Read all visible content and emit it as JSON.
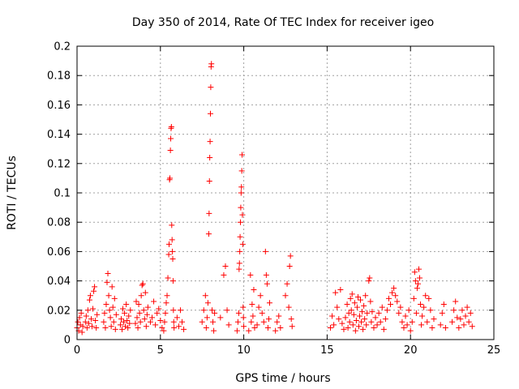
{
  "chart_data": {
    "type": "scatter",
    "title": "Day 350 of 2014, Rate Of TEC Index for receiver igeo",
    "xlabel": "GPS time / hours",
    "ylabel": "ROTI / TECUs",
    "xlim": [
      0,
      25
    ],
    "ylim": [
      0,
      0.2
    ],
    "xticks": [
      0,
      5,
      10,
      15,
      20,
      25
    ],
    "xtick_labels": [
      "0",
      "5",
      "10",
      "15",
      "20",
      "25"
    ],
    "yticks": [
      0,
      0.02,
      0.04,
      0.06,
      0.08,
      0.1,
      0.12,
      0.14,
      0.16,
      0.18,
      0.2
    ],
    "ytick_labels": [
      "0",
      "0.02",
      "0.04",
      "0.06",
      "0.08",
      "0.1",
      "0.12",
      "0.14",
      "0.16",
      "0.18",
      "0.2"
    ],
    "grid": true,
    "marker": "+",
    "marker_color": "#ff0000",
    "series": [
      {
        "name": "ROTI",
        "points": [
          [
            0.0,
            0.008
          ],
          [
            0.05,
            0.012
          ],
          [
            0.1,
            0.006
          ],
          [
            0.15,
            0.015
          ],
          [
            0.2,
            0.01
          ],
          [
            0.25,
            0.018
          ],
          [
            0.3,
            0.005
          ],
          [
            0.35,
            0.009
          ],
          [
            0.5,
            0.012
          ],
          [
            0.55,
            0.016
          ],
          [
            0.6,
            0.008
          ],
          [
            0.65,
            0.02
          ],
          [
            0.7,
            0.011
          ],
          [
            0.75,
            0.027
          ],
          [
            0.8,
            0.03
          ],
          [
            0.85,
            0.014
          ],
          [
            0.9,
            0.009
          ],
          [
            0.95,
            0.021
          ],
          [
            1.0,
            0.033
          ],
          [
            1.05,
            0.036
          ],
          [
            1.1,
            0.013
          ],
          [
            1.15,
            0.008
          ],
          [
            1.2,
            0.017
          ],
          [
            1.6,
            0.012
          ],
          [
            1.65,
            0.018
          ],
          [
            1.7,
            0.008
          ],
          [
            1.75,
            0.024
          ],
          [
            1.8,
            0.039
          ],
          [
            1.85,
            0.045
          ],
          [
            1.9,
            0.03
          ],
          [
            1.95,
            0.02
          ],
          [
            2.0,
            0.015
          ],
          [
            2.05,
            0.009
          ],
          [
            2.1,
            0.036
          ],
          [
            2.15,
            0.022
          ],
          [
            2.2,
            0.012
          ],
          [
            2.25,
            0.028
          ],
          [
            2.3,
            0.007
          ],
          [
            2.35,
            0.017
          ],
          [
            2.6,
            0.01
          ],
          [
            2.65,
            0.014
          ],
          [
            2.7,
            0.007
          ],
          [
            2.75,
            0.021
          ],
          [
            2.8,
            0.012
          ],
          [
            2.85,
            0.018
          ],
          [
            2.9,
            0.009
          ],
          [
            2.95,
            0.024
          ],
          [
            3.0,
            0.013
          ],
          [
            3.05,
            0.008
          ],
          [
            3.1,
            0.016
          ],
          [
            3.15,
            0.011
          ],
          [
            3.2,
            0.02
          ],
          [
            3.5,
            0.011
          ],
          [
            3.55,
            0.026
          ],
          [
            3.6,
            0.015
          ],
          [
            3.65,
            0.008
          ],
          [
            3.7,
            0.024
          ],
          [
            3.75,
            0.018
          ],
          [
            3.8,
            0.012
          ],
          [
            3.85,
            0.03
          ],
          [
            3.9,
            0.037
          ],
          [
            3.95,
            0.038
          ],
          [
            4.0,
            0.02
          ],
          [
            4.05,
            0.014
          ],
          [
            4.1,
            0.032
          ],
          [
            4.15,
            0.009
          ],
          [
            4.2,
            0.017
          ],
          [
            4.25,
            0.022
          ],
          [
            4.4,
            0.012
          ],
          [
            4.5,
            0.015
          ],
          [
            4.6,
            0.026
          ],
          [
            4.7,
            0.01
          ],
          [
            4.8,
            0.018
          ],
          [
            4.9,
            0.021
          ],
          [
            5.0,
            0.013
          ],
          [
            5.1,
            0.008
          ],
          [
            5.2,
            0.006
          ],
          [
            5.25,
            0.012
          ],
          [
            5.3,
            0.018
          ],
          [
            5.35,
            0.025
          ],
          [
            5.4,
            0.03
          ],
          [
            5.45,
            0.042
          ],
          [
            5.5,
            0.058
          ],
          [
            5.52,
            0.065
          ],
          [
            5.55,
            0.109
          ],
          [
            5.57,
            0.11
          ],
          [
            5.6,
            0.129
          ],
          [
            5.62,
            0.137
          ],
          [
            5.64,
            0.144
          ],
          [
            5.66,
            0.145
          ],
          [
            5.68,
            0.078
          ],
          [
            5.7,
            0.068
          ],
          [
            5.72,
            0.06
          ],
          [
            5.74,
            0.055
          ],
          [
            5.76,
            0.04
          ],
          [
            5.78,
            0.02
          ],
          [
            5.8,
            0.012
          ],
          [
            5.82,
            0.008
          ],
          [
            6.0,
            0.015
          ],
          [
            6.1,
            0.009
          ],
          [
            6.2,
            0.02
          ],
          [
            6.3,
            0.012
          ],
          [
            6.4,
            0.007
          ],
          [
            7.5,
            0.012
          ],
          [
            7.6,
            0.02
          ],
          [
            7.7,
            0.03
          ],
          [
            7.75,
            0.008
          ],
          [
            7.8,
            0.015
          ],
          [
            7.85,
            0.025
          ],
          [
            7.9,
            0.072
          ],
          [
            7.92,
            0.086
          ],
          [
            7.94,
            0.108
          ],
          [
            7.96,
            0.124
          ],
          [
            7.98,
            0.135
          ],
          [
            8.0,
            0.154
          ],
          [
            8.02,
            0.172
          ],
          [
            8.04,
            0.186
          ],
          [
            8.06,
            0.188
          ],
          [
            8.1,
            0.02
          ],
          [
            8.15,
            0.012
          ],
          [
            8.2,
            0.006
          ],
          [
            8.25,
            0.018
          ],
          [
            8.6,
            0.015
          ],
          [
            8.8,
            0.044
          ],
          [
            8.9,
            0.05
          ],
          [
            9.0,
            0.02
          ],
          [
            9.1,
            0.01
          ],
          [
            9.6,
            0.006
          ],
          [
            9.65,
            0.012
          ],
          [
            9.7,
            0.018
          ],
          [
            9.72,
            0.048
          ],
          [
            9.74,
            0.052
          ],
          [
            9.76,
            0.06
          ],
          [
            9.78,
            0.07
          ],
          [
            9.8,
            0.08
          ],
          [
            9.82,
            0.09
          ],
          [
            9.84,
            0.1
          ],
          [
            9.86,
            0.104
          ],
          [
            9.88,
            0.115
          ],
          [
            9.9,
            0.126
          ],
          [
            9.92,
            0.085
          ],
          [
            9.94,
            0.065
          ],
          [
            9.96,
            0.022
          ],
          [
            9.98,
            0.015
          ],
          [
            10.0,
            0.009
          ],
          [
            10.3,
            0.006
          ],
          [
            10.4,
            0.044
          ],
          [
            10.45,
            0.012
          ],
          [
            10.5,
            0.024
          ],
          [
            10.55,
            0.016
          ],
          [
            10.6,
            0.034
          ],
          [
            10.65,
            0.008
          ],
          [
            10.8,
            0.01
          ],
          [
            10.9,
            0.022
          ],
          [
            11.0,
            0.03
          ],
          [
            11.1,
            0.018
          ],
          [
            11.2,
            0.012
          ],
          [
            11.3,
            0.06
          ],
          [
            11.35,
            0.044
          ],
          [
            11.4,
            0.038
          ],
          [
            11.45,
            0.008
          ],
          [
            11.5,
            0.014
          ],
          [
            11.55,
            0.025
          ],
          [
            11.9,
            0.006
          ],
          [
            12.0,
            0.012
          ],
          [
            12.1,
            0.016
          ],
          [
            12.2,
            0.008
          ],
          [
            12.5,
            0.03
          ],
          [
            12.6,
            0.038
          ],
          [
            12.7,
            0.022
          ],
          [
            12.75,
            0.05
          ],
          [
            12.8,
            0.057
          ],
          [
            12.85,
            0.014
          ],
          [
            12.9,
            0.009
          ],
          [
            15.2,
            0.008
          ],
          [
            15.3,
            0.016
          ],
          [
            15.4,
            0.01
          ],
          [
            15.5,
            0.032
          ],
          [
            15.6,
            0.022
          ],
          [
            15.7,
            0.014
          ],
          [
            15.8,
            0.034
          ],
          [
            15.9,
            0.011
          ],
          [
            16.0,
            0.007
          ],
          [
            16.1,
            0.015
          ],
          [
            16.2,
            0.024
          ],
          [
            16.25,
            0.008
          ],
          [
            16.3,
            0.018
          ],
          [
            16.35,
            0.012
          ],
          [
            16.4,
            0.028
          ],
          [
            16.45,
            0.02
          ],
          [
            16.5,
            0.031
          ],
          [
            16.55,
            0.01
          ],
          [
            16.6,
            0.017
          ],
          [
            16.65,
            0.025
          ],
          [
            16.7,
            0.006
          ],
          [
            16.75,
            0.013
          ],
          [
            16.8,
            0.022
          ],
          [
            16.85,
            0.029
          ],
          [
            16.9,
            0.009
          ],
          [
            16.95,
            0.016
          ],
          [
            17.0,
            0.027
          ],
          [
            17.05,
            0.012
          ],
          [
            17.1,
            0.019
          ],
          [
            17.15,
            0.007
          ],
          [
            17.2,
            0.023
          ],
          [
            17.25,
            0.014
          ],
          [
            17.3,
            0.03
          ],
          [
            17.35,
            0.01
          ],
          [
            17.4,
            0.018
          ],
          [
            17.5,
            0.04
          ],
          [
            17.55,
            0.042
          ],
          [
            17.6,
            0.026
          ],
          [
            17.65,
            0.012
          ],
          [
            17.7,
            0.019
          ],
          [
            17.8,
            0.008
          ],
          [
            17.9,
            0.015
          ],
          [
            18.0,
            0.01
          ],
          [
            18.1,
            0.018
          ],
          [
            18.2,
            0.012
          ],
          [
            18.3,
            0.022
          ],
          [
            18.4,
            0.007
          ],
          [
            18.5,
            0.014
          ],
          [
            18.6,
            0.02
          ],
          [
            18.7,
            0.028
          ],
          [
            18.8,
            0.024
          ],
          [
            18.9,
            0.032
          ],
          [
            19.0,
            0.035
          ],
          [
            19.1,
            0.03
          ],
          [
            19.2,
            0.026
          ],
          [
            19.3,
            0.018
          ],
          [
            19.4,
            0.022
          ],
          [
            19.5,
            0.012
          ],
          [
            19.6,
            0.008
          ],
          [
            19.7,
            0.016
          ],
          [
            19.8,
            0.01
          ],
          [
            19.9,
            0.02
          ],
          [
            20.0,
            0.006
          ],
          [
            20.1,
            0.012
          ],
          [
            20.2,
            0.028
          ],
          [
            20.25,
            0.046
          ],
          [
            20.3,
            0.04
          ],
          [
            20.35,
            0.018
          ],
          [
            20.4,
            0.035
          ],
          [
            20.45,
            0.038
          ],
          [
            20.5,
            0.048
          ],
          [
            20.55,
            0.042
          ],
          [
            20.6,
            0.024
          ],
          [
            20.65,
            0.01
          ],
          [
            20.7,
            0.016
          ],
          [
            20.8,
            0.022
          ],
          [
            20.9,
            0.03
          ],
          [
            21.0,
            0.012
          ],
          [
            21.1,
            0.028
          ],
          [
            21.2,
            0.02
          ],
          [
            21.3,
            0.008
          ],
          [
            21.4,
            0.014
          ],
          [
            21.8,
            0.01
          ],
          [
            21.9,
            0.018
          ],
          [
            22.0,
            0.024
          ],
          [
            22.1,
            0.008
          ],
          [
            22.5,
            0.012
          ],
          [
            22.6,
            0.02
          ],
          [
            22.7,
            0.026
          ],
          [
            22.8,
            0.015
          ],
          [
            22.9,
            0.008
          ],
          [
            23.0,
            0.014
          ],
          [
            23.1,
            0.02
          ],
          [
            23.2,
            0.01
          ],
          [
            23.3,
            0.016
          ],
          [
            23.4,
            0.022
          ],
          [
            23.5,
            0.012
          ],
          [
            23.6,
            0.018
          ],
          [
            23.7,
            0.009
          ]
        ]
      }
    ]
  }
}
